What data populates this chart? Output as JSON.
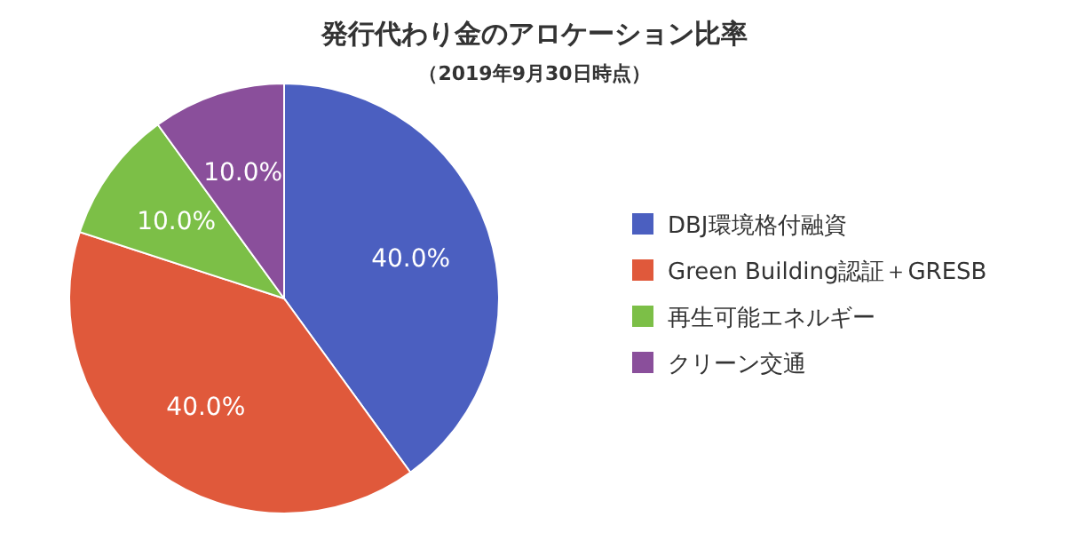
{
  "chart_data": {
    "type": "pie",
    "title": "発行代わり金のアロケーション比率",
    "subtitle": "（2019年9月30日時点）",
    "categories": [
      "DBJ環境格付融資",
      "Green Building認証＋GRESB",
      "再生可能エネルギー",
      "クリーン交通"
    ],
    "values": [
      40,
      40,
      10,
      10
    ],
    "colors": [
      "#4b5fc0",
      "#e0593b",
      "#7cbf47",
      "#8a4f9b"
    ],
    "value_labels": [
      "40.0%",
      "40.0%",
      "10.0%",
      "10.0%"
    ],
    "legend": "right"
  }
}
